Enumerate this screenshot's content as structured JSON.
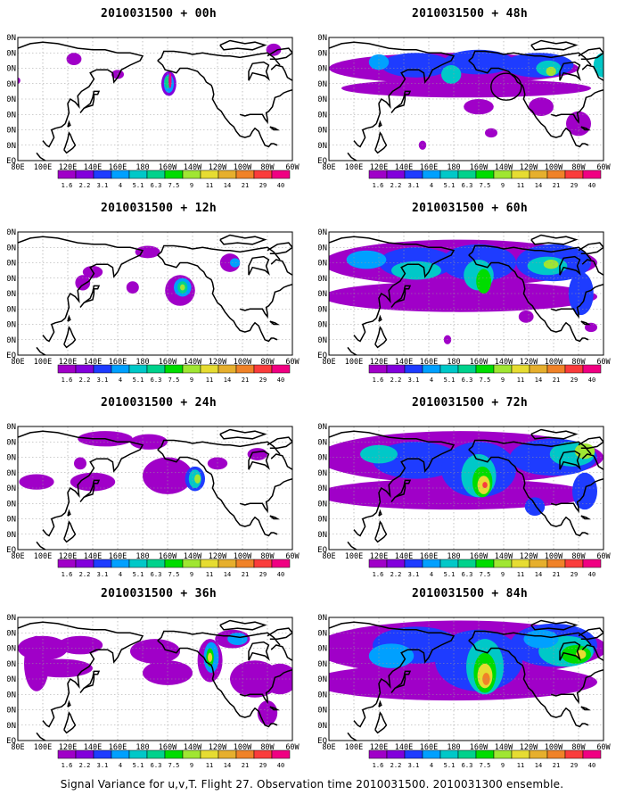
{
  "figure": {
    "caption": "Signal Variance for u,v,T. Flight 27. Observation time 2010031500. 2010031300 ensemble."
  },
  "axes": {
    "lat_labels": [
      "80N",
      "70N",
      "60N",
      "50N",
      "40N",
      "30N",
      "20N",
      "10N",
      "EQ"
    ],
    "lon_labels": [
      "80E",
      "100E",
      "120E",
      "140E",
      "160E",
      "180",
      "160W",
      "140W",
      "120W",
      "100W",
      "80W",
      "60W"
    ]
  },
  "colorbar": {
    "levels": [
      "1.6",
      "2.2",
      "3.1",
      "4",
      "5.1",
      "6.3",
      "7.5",
      "9",
      "11",
      "14",
      "21",
      "29",
      "40"
    ],
    "colors": [
      "#a000c8",
      "#8200dc",
      "#1e3cff",
      "#00a0ff",
      "#00c8c8",
      "#00d28c",
      "#00dc00",
      "#a0e632",
      "#e6dc32",
      "#e6af2d",
      "#f08228",
      "#fa3c3c",
      "#f00082"
    ]
  },
  "panels": [
    {
      "id": "p00",
      "title": "2010031500 + 00h",
      "lead_hours": 0
    },
    {
      "id": "p12",
      "title": "2010031500 + 12h",
      "lead_hours": 12
    },
    {
      "id": "p24",
      "title": "2010031500 + 24h",
      "lead_hours": 24
    },
    {
      "id": "p36",
      "title": "2010031500 + 36h",
      "lead_hours": 36
    },
    {
      "id": "p48",
      "title": "2010031500 + 48h",
      "lead_hours": 48
    },
    {
      "id": "p60",
      "title": "2010031500 + 60h",
      "lead_hours": 60
    },
    {
      "id": "p72",
      "title": "2010031500 + 72h",
      "lead_hours": 72
    },
    {
      "id": "p84",
      "title": "2010031500 + 84h",
      "lead_hours": 84
    }
  ]
}
